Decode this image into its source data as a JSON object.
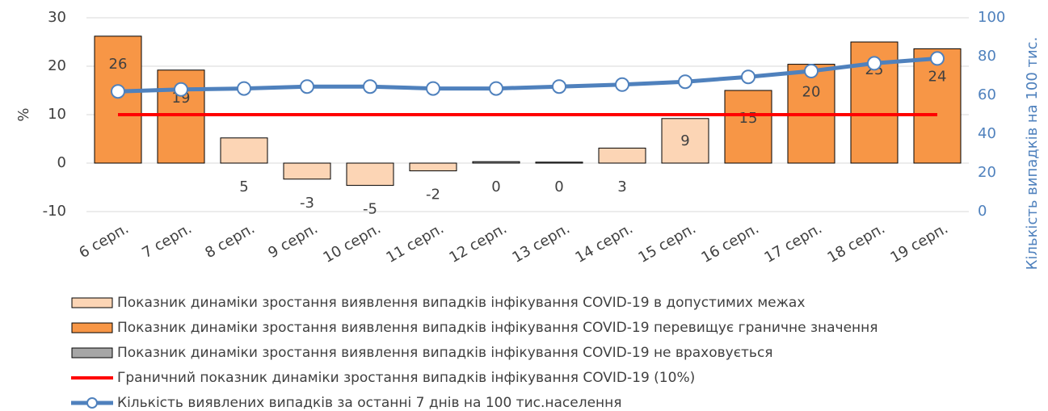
{
  "chart_data": {
    "type": "bar",
    "categories": [
      "6 серп.",
      "7 серп.",
      "8 серп.",
      "9 серп.",
      "10 серп.",
      "11 серп.",
      "12 серп.",
      "13 серп.",
      "14 серп.",
      "15 серп.",
      "16 серп.",
      "17 серп.",
      "18 серп.",
      "19 серп."
    ],
    "series": [
      {
        "name": "Показник динаміки зростання виявлення випадків інфікування COVID-19 в допустимих межах",
        "type": "bar",
        "color": "#fcd5b5",
        "values": [
          null,
          null,
          5.2,
          -3.3,
          -4.6,
          -1.6,
          null,
          null,
          3.1,
          9.2,
          null,
          null,
          null,
          null
        ],
        "value_labels": [
          null,
          null,
          "5",
          "-3",
          "-5",
          "-2",
          null,
          null,
          "3",
          "9",
          null,
          null,
          null,
          null
        ]
      },
      {
        "name": "Показник динаміки зростання виявлення випадків інфікування COVID-19 перевищує граничне значення",
        "type": "bar",
        "color": "#f79646",
        "values": [
          26.2,
          19.2,
          null,
          null,
          null,
          null,
          null,
          null,
          null,
          null,
          15,
          20.4,
          25,
          23.6
        ],
        "value_labels": [
          "26",
          "19",
          null,
          null,
          null,
          null,
          null,
          null,
          null,
          null,
          "15",
          "20",
          "25",
          "24"
        ]
      },
      {
        "name": "Показник динаміки зростання виявлення випадків інфікування COVID-19 не враховується",
        "type": "bar",
        "color": "#a6a6a6",
        "values": [
          null,
          null,
          null,
          null,
          null,
          null,
          0.3,
          0.2,
          null,
          null,
          null,
          null,
          null,
          null
        ],
        "value_labels": [
          null,
          null,
          null,
          null,
          null,
          null,
          "0",
          "0",
          null,
          null,
          null,
          null,
          null,
          null
        ]
      },
      {
        "name": "Граничний показник динаміки зростання випадків інфікування COVID-19 (10%)",
        "type": "line",
        "color": "#ff0000",
        "values": [
          10,
          10,
          10,
          10,
          10,
          10,
          10,
          10,
          10,
          10,
          10,
          10,
          10,
          10
        ]
      },
      {
        "name": "Кількість виявлених випадків за останні 7 днів на 100 тис.населення",
        "type": "line",
        "markers": true,
        "axis": "y2",
        "color": "#4f81bd",
        "values": [
          62,
          63,
          63.5,
          64.5,
          64.5,
          63.5,
          63.5,
          64.5,
          65.5,
          67,
          69.5,
          72.5,
          76.5,
          79
        ]
      }
    ],
    "ylabel": "%",
    "y2label": "Кількість випадків на 100 тис.",
    "ylim": [
      -10,
      30
    ],
    "yticks": [
      -10,
      0,
      10,
      20,
      30
    ],
    "y2lim": [
      0,
      100
    ],
    "y2ticks": [
      0,
      20,
      40,
      60,
      80,
      100
    ],
    "grid": true,
    "legend": "bottom"
  }
}
